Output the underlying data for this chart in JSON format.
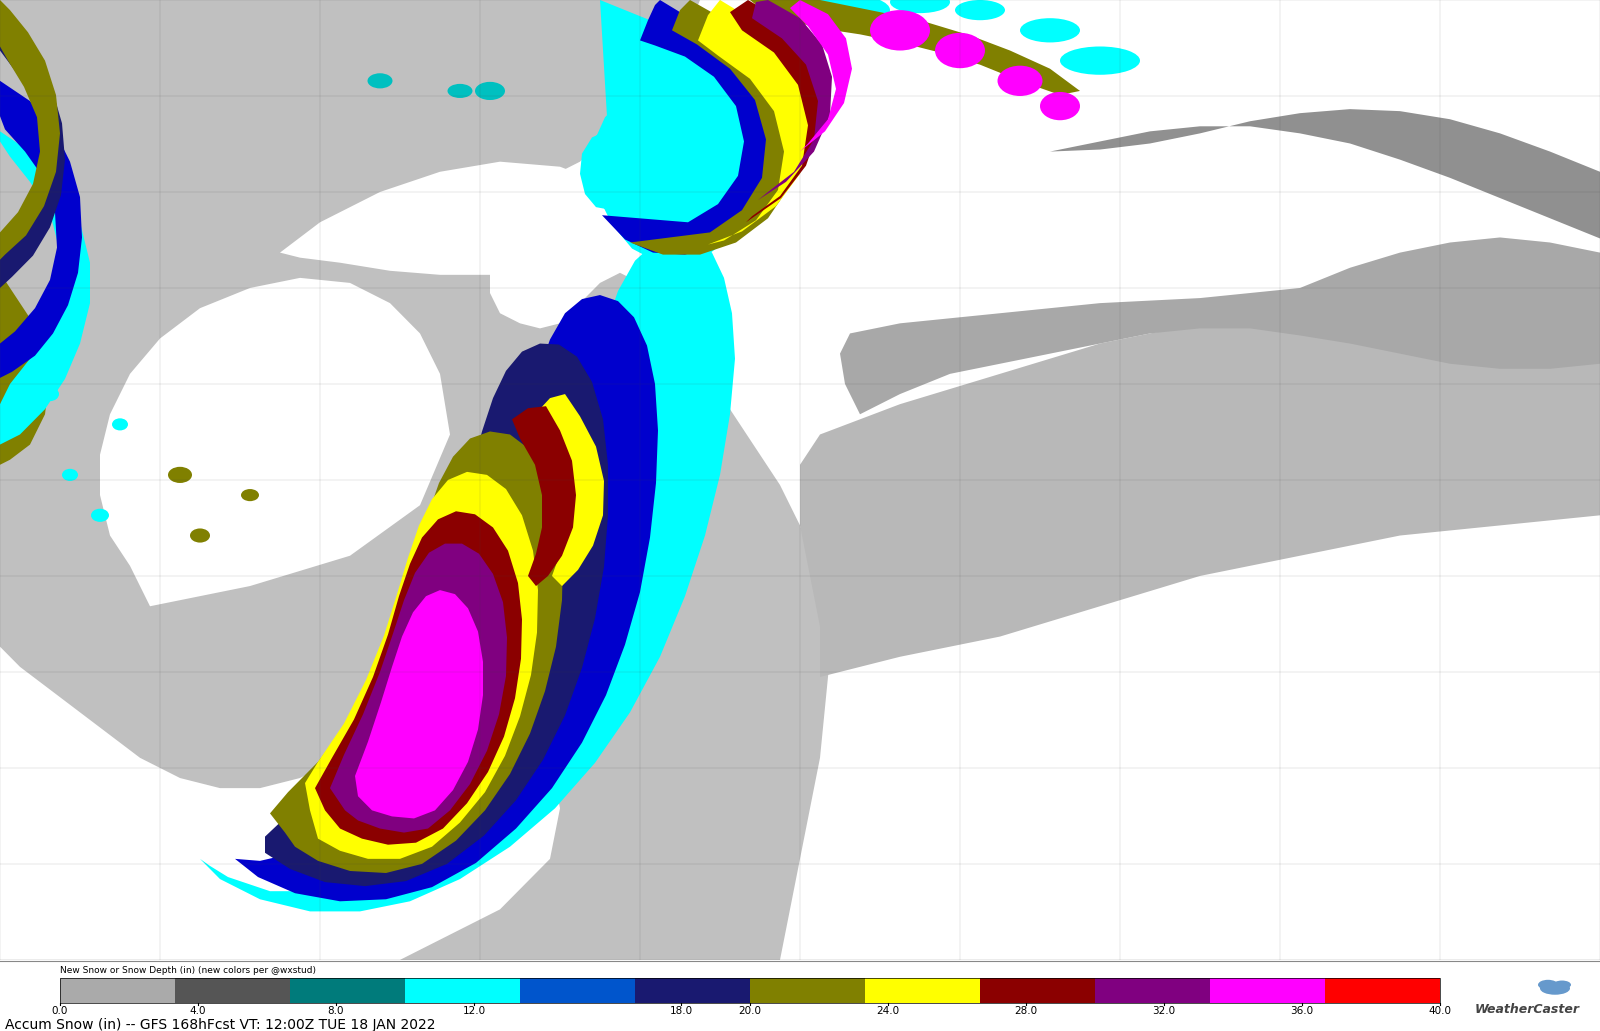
{
  "title": "Accum Snow (in) -- GFS 168hFcst VT: 12:00Z TUE 18 JAN 2022",
  "colorbar_label": "New Snow or Snow Depth (in) (new colors per @wxstud)",
  "colorbar_ticks": [
    0.0,
    4.0,
    8.0,
    12.0,
    18.0,
    20.0,
    24.0,
    28.0,
    32.0,
    36.0,
    40.0
  ],
  "colorbar_colors": [
    "#aaaaaa",
    "#555555",
    "#007b7b",
    "#00ffff",
    "#0055cc",
    "#191970",
    "#808000",
    "#ffff00",
    "#8b0000",
    "#800080",
    "#ff00ff",
    "#ff0000"
  ],
  "bg_color": "#ffffff",
  "land_gray": "#b0b0b0",
  "land_light": "#d8d8d8",
  "ocean_white": "#ffffff",
  "fig_width": 16.0,
  "fig_height": 10.31,
  "title_fontsize": 10,
  "colorbar_label_fontsize": 6.5,
  "tick_fontsize": 7.5,
  "watermark": "WeatherCaster"
}
